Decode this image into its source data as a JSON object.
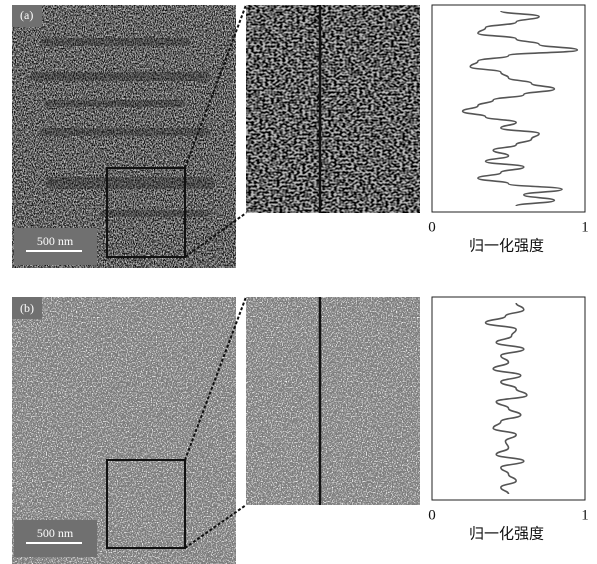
{
  "panels": [
    {
      "label": "(a)",
      "scale_bar": "500 nm"
    },
    {
      "label": "(b)",
      "scale_bar": "500 nm"
    }
  ],
  "chart_data": [
    {
      "type": "line",
      "orientation": "vertical",
      "color": "#555555",
      "values": [
        0.45,
        0.7,
        0.55,
        0.35,
        0.3,
        0.55,
        0.7,
        0.95,
        0.5,
        0.3,
        0.25,
        0.45,
        0.5,
        0.65,
        0.8,
        0.6,
        0.4,
        0.3,
        0.2,
        0.35,
        0.55,
        0.45,
        0.7,
        0.65,
        0.55,
        0.4,
        0.5,
        0.35,
        0.6,
        0.45,
        0.3,
        0.5,
        0.85,
        0.6,
        0.8,
        0.55
      ],
      "xlim": [
        0,
        1
      ],
      "xticks": [
        0,
        1
      ],
      "xlabel": "归一化强度"
    },
    {
      "type": "line",
      "orientation": "vertical",
      "color": "#555555",
      "values": [
        0.55,
        0.6,
        0.48,
        0.35,
        0.55,
        0.52,
        0.42,
        0.6,
        0.45,
        0.5,
        0.4,
        0.58,
        0.45,
        0.55,
        0.62,
        0.42,
        0.5,
        0.58,
        0.45,
        0.4,
        0.55,
        0.48,
        0.5,
        0.42,
        0.6,
        0.45,
        0.5,
        0.55,
        0.45,
        0.5
      ],
      "xlim": [
        0,
        1
      ],
      "xticks": [
        0,
        1
      ],
      "xlabel": "归一化强度"
    }
  ]
}
